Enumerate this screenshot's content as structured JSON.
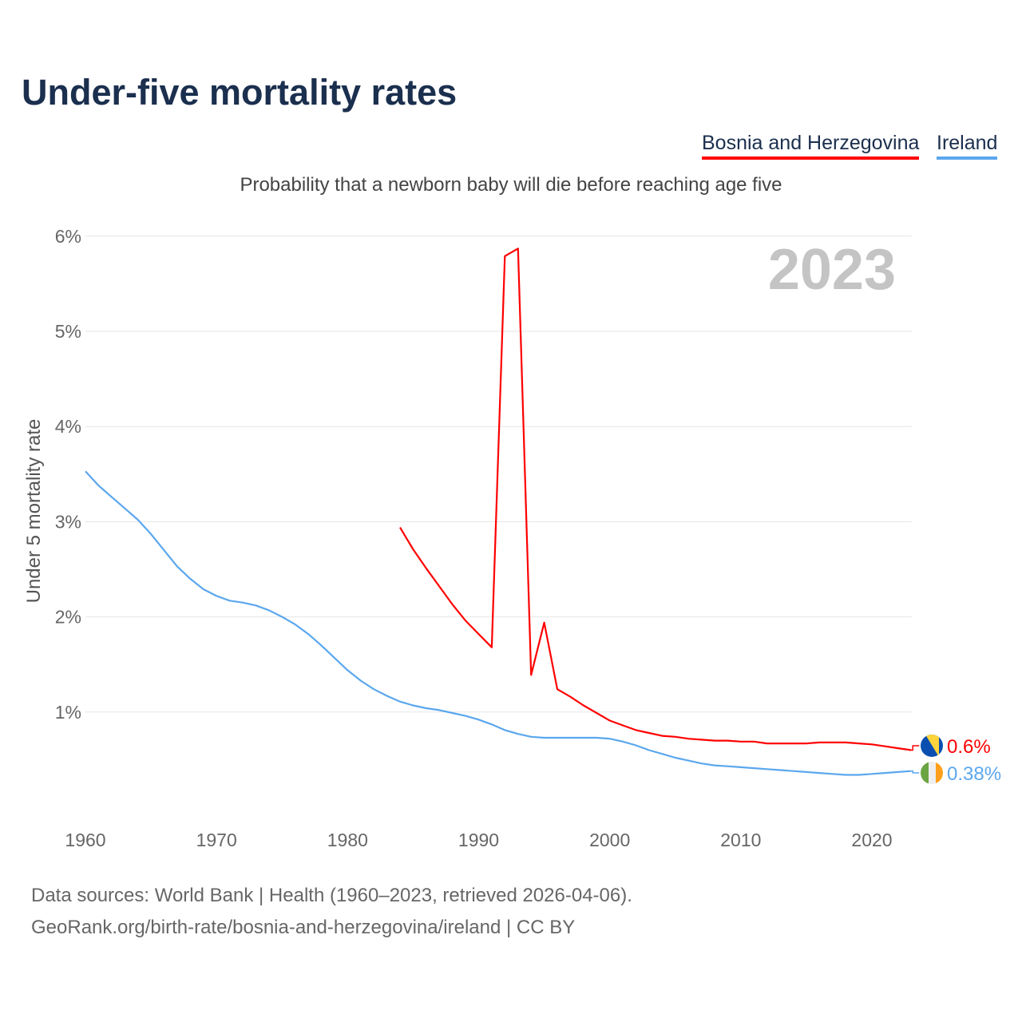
{
  "chart_data": {
    "type": "line",
    "title": "Under-five mortality rates",
    "subtitle": "Probability that a newborn baby will die before reaching age five",
    "ylabel": "Under 5 mortality rate",
    "xlabel": "",
    "year_label": "2023",
    "xlim": [
      1960,
      2023
    ],
    "ylim": [
      0,
      6
    ],
    "x_ticks": [
      1960,
      1970,
      1980,
      1990,
      2000,
      2010,
      2020
    ],
    "y_ticks": [
      {
        "v": 1,
        "label": "1%"
      },
      {
        "v": 2,
        "label": "2%"
      },
      {
        "v": 3,
        "label": "3%"
      },
      {
        "v": 4,
        "label": "4%"
      },
      {
        "v": 5,
        "label": "5%"
      },
      {
        "v": 6,
        "label": "6%"
      }
    ],
    "grid": true,
    "legend_position": "top-right",
    "series": [
      {
        "name": "Bosnia and Herzegovina",
        "color": "#ff0000",
        "end_label": "0.6%",
        "flag": "bosnia-flag",
        "x": [
          1984,
          1985,
          1986,
          1987,
          1988,
          1989,
          1990,
          1991,
          1992,
          1993,
          1994,
          1995,
          1996,
          1997,
          1998,
          1999,
          2000,
          2001,
          2002,
          2003,
          2004,
          2005,
          2006,
          2007,
          2008,
          2009,
          2010,
          2011,
          2012,
          2013,
          2014,
          2015,
          2016,
          2017,
          2018,
          2019,
          2020,
          2021,
          2022,
          2023
        ],
        "values": [
          2.94,
          2.71,
          2.51,
          2.32,
          2.13,
          1.96,
          1.82,
          1.68,
          5.79,
          5.87,
          1.39,
          1.94,
          1.24,
          1.16,
          1.07,
          0.99,
          0.91,
          0.86,
          0.81,
          0.78,
          0.75,
          0.74,
          0.72,
          0.71,
          0.7,
          0.7,
          0.69,
          0.69,
          0.67,
          0.67,
          0.67,
          0.67,
          0.68,
          0.68,
          0.68,
          0.67,
          0.66,
          0.64,
          0.62,
          0.6
        ]
      },
      {
        "name": "Ireland",
        "color": "#5ba7ee",
        "end_label": "0.38%",
        "flag": "ireland-flag",
        "x": [
          1960,
          1961,
          1962,
          1963,
          1964,
          1965,
          1966,
          1967,
          1968,
          1969,
          1970,
          1971,
          1972,
          1973,
          1974,
          1975,
          1976,
          1977,
          1978,
          1979,
          1980,
          1981,
          1982,
          1983,
          1984,
          1985,
          1986,
          1987,
          1988,
          1989,
          1990,
          1991,
          1992,
          1993,
          1994,
          1995,
          1996,
          1997,
          1998,
          1999,
          2000,
          2001,
          2002,
          2003,
          2004,
          2005,
          2006,
          2007,
          2008,
          2009,
          2010,
          2011,
          2012,
          2013,
          2014,
          2015,
          2016,
          2017,
          2018,
          2019,
          2020,
          2021,
          2022,
          2023
        ],
        "values": [
          3.53,
          3.38,
          3.26,
          3.14,
          3.02,
          2.87,
          2.7,
          2.53,
          2.4,
          2.29,
          2.22,
          2.17,
          2.15,
          2.12,
          2.07,
          2.0,
          1.92,
          1.82,
          1.7,
          1.57,
          1.44,
          1.33,
          1.24,
          1.17,
          1.11,
          1.07,
          1.04,
          1.02,
          0.99,
          0.96,
          0.92,
          0.87,
          0.81,
          0.77,
          0.74,
          0.73,
          0.73,
          0.73,
          0.73,
          0.73,
          0.72,
          0.69,
          0.65,
          0.6,
          0.56,
          0.52,
          0.49,
          0.46,
          0.44,
          0.43,
          0.42,
          0.41,
          0.4,
          0.39,
          0.38,
          0.37,
          0.36,
          0.35,
          0.34,
          0.34,
          0.35,
          0.36,
          0.37,
          0.38
        ]
      }
    ]
  },
  "sources": {
    "line1": "Data sources: World Bank | Health (1960–2023, retrieved 2026-04-06).",
    "line2": "GeoRank.org/birth-rate/bosnia-and-herzegovina/ireland | CC BY"
  }
}
